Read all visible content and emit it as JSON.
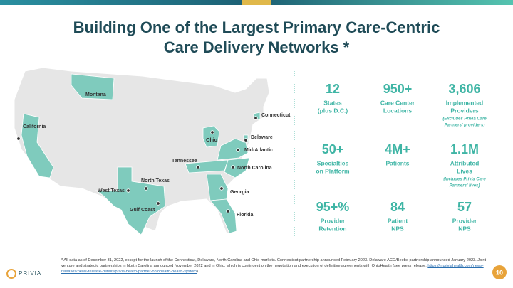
{
  "header": {
    "title_lines": [
      "Building One of the Largest Primary Care-Centric",
      "Care Delivery Networks *"
    ]
  },
  "stats": [
    {
      "value": "12",
      "label": [
        "States",
        "(plus D.C.)"
      ]
    },
    {
      "value": "950+",
      "label": [
        "Care Center",
        "Locations"
      ]
    },
    {
      "value": "3,606",
      "label": [
        "Implemented",
        "Providers"
      ],
      "note": [
        "(Excludes Privia Care",
        "Partners' providers)"
      ]
    },
    {
      "value": "50+",
      "label": [
        "Specialties",
        "on Platform"
      ]
    },
    {
      "value": "4M+",
      "label": [
        "Patients"
      ]
    },
    {
      "value": "1.1M",
      "label": [
        "Attributed",
        "Lives"
      ],
      "note": [
        "(Includes Privia Care",
        "Partners' lives)"
      ]
    },
    {
      "value": "95+%",
      "label": [
        "Provider",
        "Retention"
      ]
    },
    {
      "value": "84",
      "label": [
        "Patient",
        "NPS"
      ]
    },
    {
      "value": "57",
      "label": [
        "Provider",
        "NPS"
      ]
    }
  ],
  "map": {
    "labels": [
      "Montana",
      "California",
      "Connecticut",
      "Ohio",
      "Delaware",
      "Mid-Atlantic",
      "Tennessee",
      "North Carolina",
      "North Texas",
      "West Texas",
      "Gulf Coast",
      "Georgia",
      "Florida"
    ]
  },
  "footnote": {
    "text": "* All data as of December 31, 2022, except for the launch of the Connecticut, Delaware, North Carolina and Ohio markets. Connecticut partnership announced February 2023. Delaware ACO/Beebe partnership announced January 2023. Joint venture and strategic partnerships in North Carolina announced November 2022 and in Ohio, which is contingent on the negotiation and execution of definitive agreements with OhioHealth (see press release: ",
    "link": "https://ir.priviahealth.com/news-releases/news-release-details/privia-health-partner-ohiohealth-health-system",
    "closing": ")"
  },
  "page_number": "10",
  "logo": "PRIVIA"
}
